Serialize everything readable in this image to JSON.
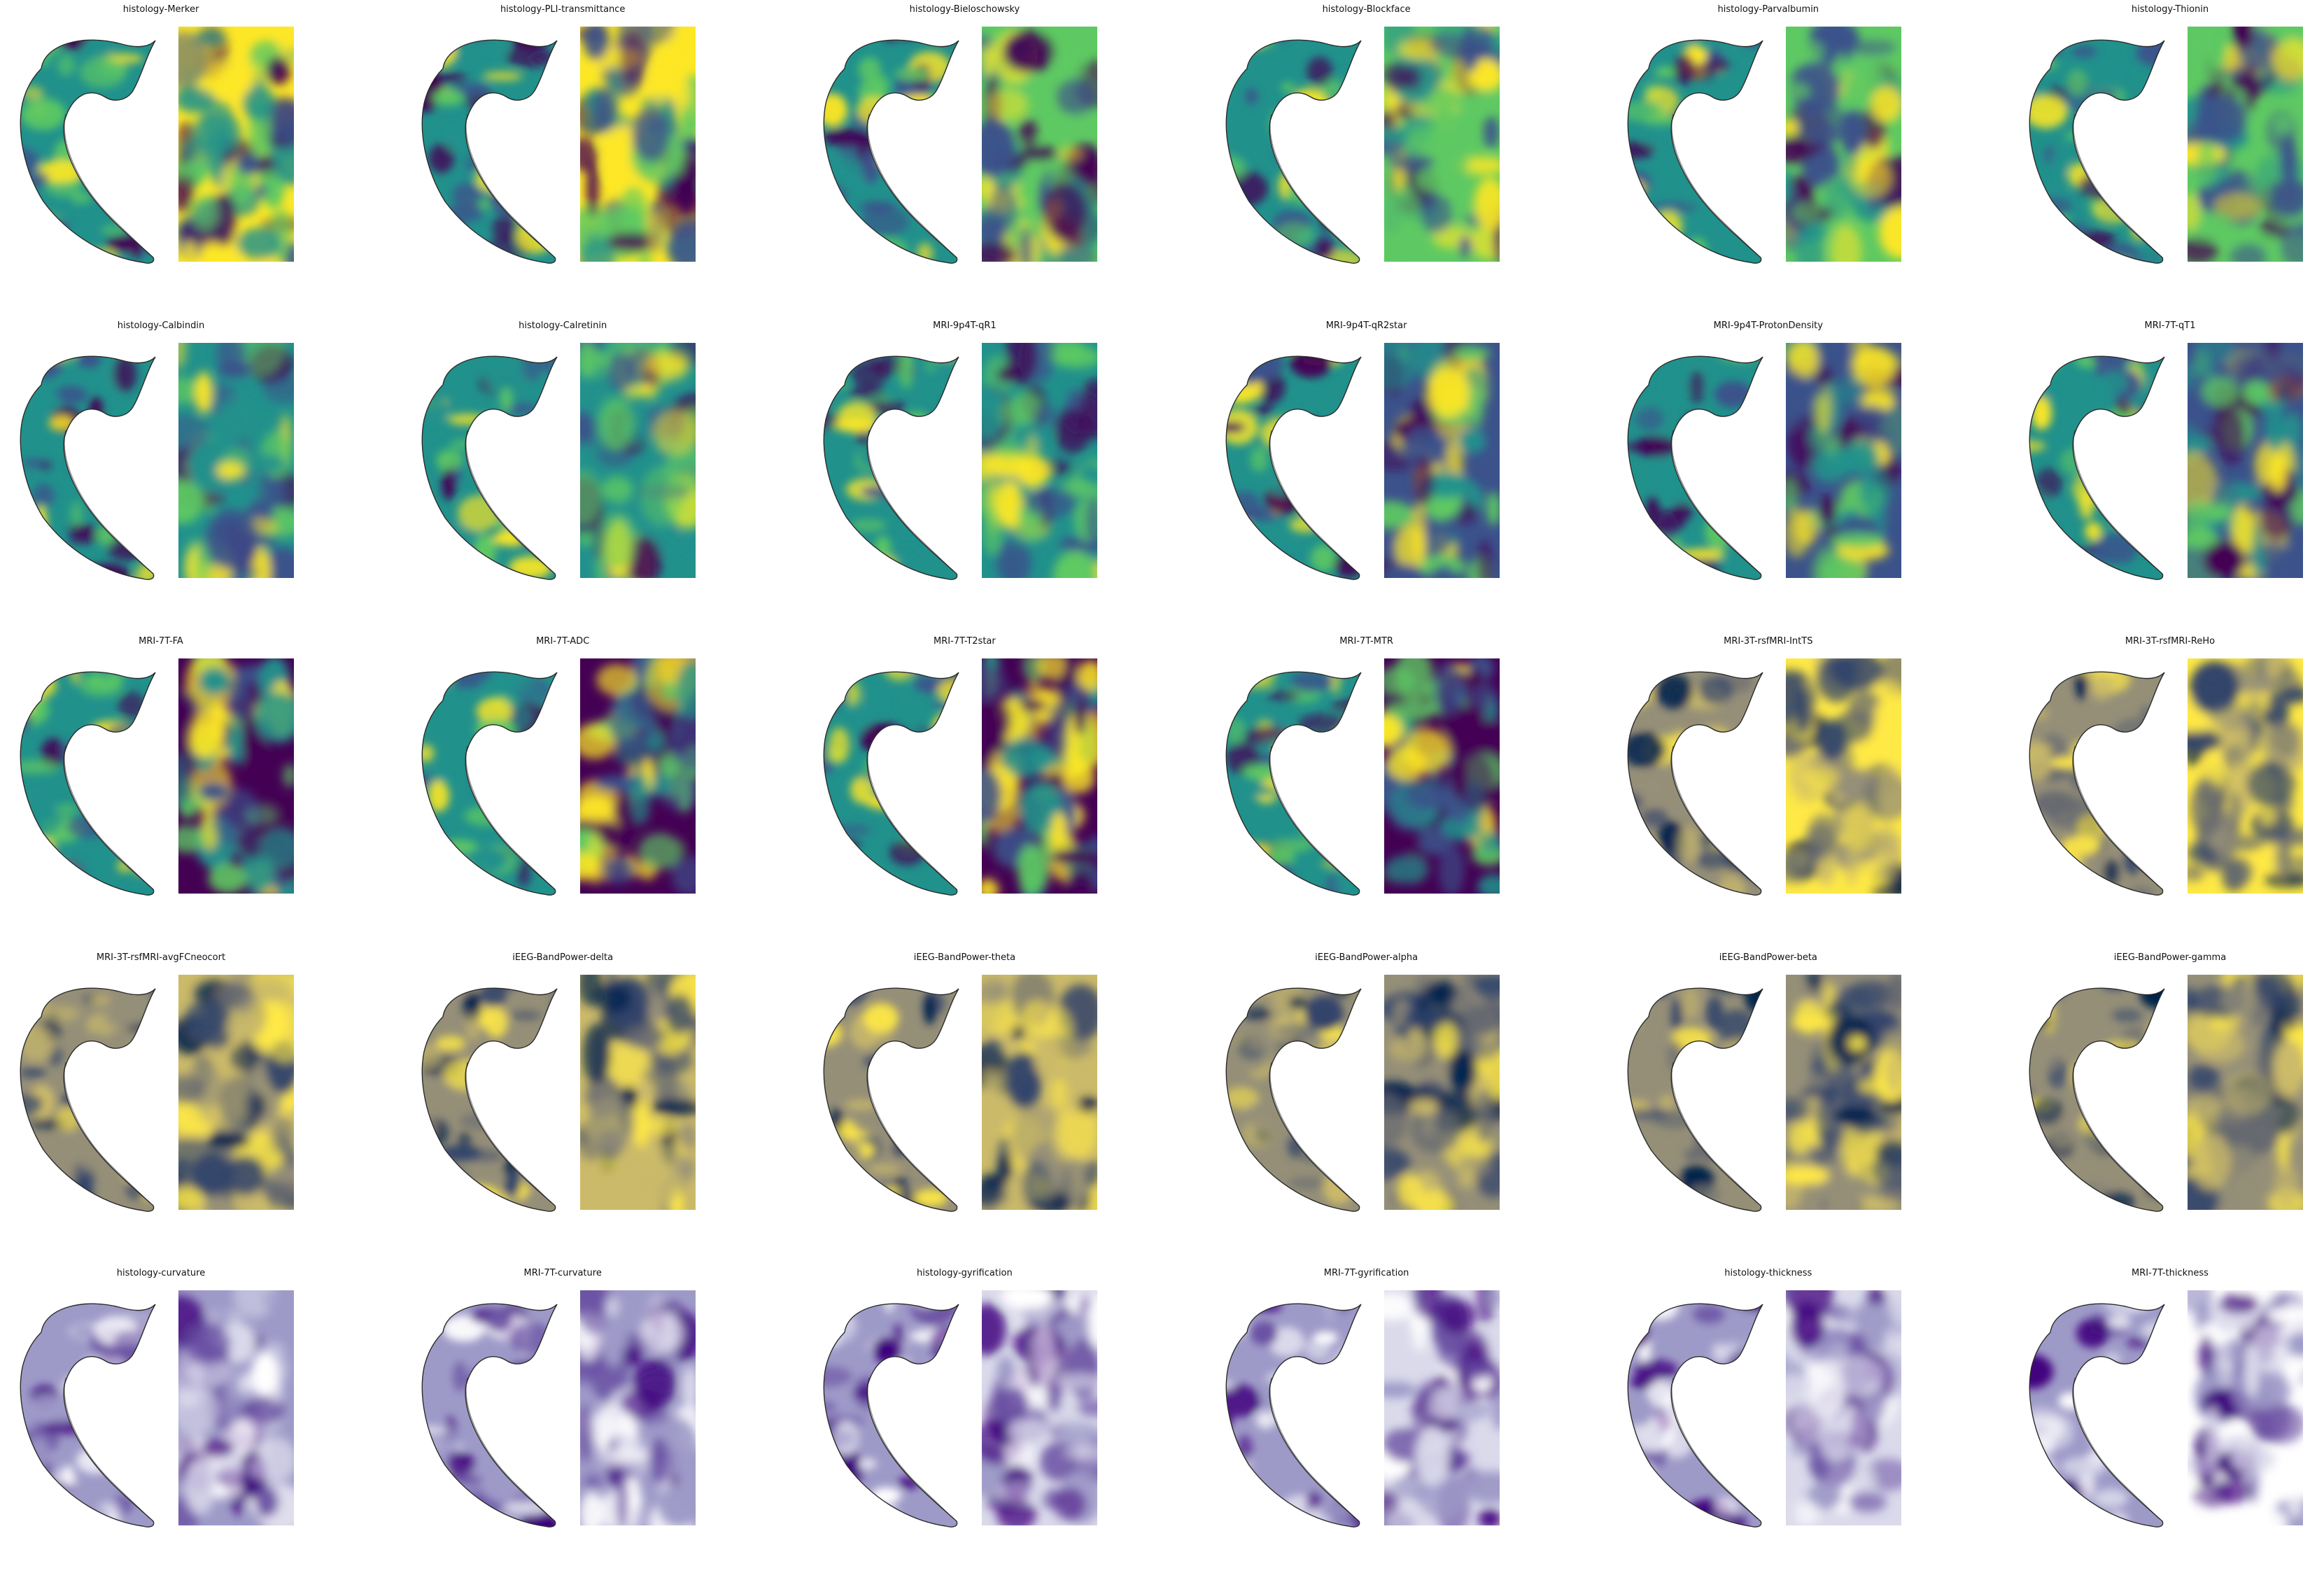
{
  "figure": {
    "colormaps": {
      "viridis": [
        "#440154",
        "#3b528b",
        "#21918c",
        "#5ec962",
        "#fde725"
      ],
      "cividis": [
        "#00204c",
        "#31446b",
        "#666970",
        "#958f78",
        "#cbba69",
        "#ffe945"
      ],
      "purples": [
        "#ffffff",
        "#dadaeb",
        "#9e9ac8",
        "#6a51a3",
        "#3f007d"
      ]
    },
    "panels": [
      {
        "title": "histology-Merker",
        "colormap": "viridis"
      },
      {
        "title": "histology-PLI-transmittance",
        "colormap": "viridis"
      },
      {
        "title": "histology-Bieloschowsky",
        "colormap": "viridis"
      },
      {
        "title": "histology-Blockface",
        "colormap": "viridis"
      },
      {
        "title": "histology-Parvalbumin",
        "colormap": "viridis"
      },
      {
        "title": "histology-Thionin",
        "colormap": "viridis"
      },
      {
        "title": "histology-Calbindin",
        "colormap": "viridis"
      },
      {
        "title": "histology-Calretinin",
        "colormap": "viridis"
      },
      {
        "title": "MRI-9p4T-qR1",
        "colormap": "viridis"
      },
      {
        "title": "MRI-9p4T-qR2star",
        "colormap": "viridis"
      },
      {
        "title": "MRI-9p4T-ProtonDensity",
        "colormap": "viridis"
      },
      {
        "title": "MRI-7T-qT1",
        "colormap": "viridis"
      },
      {
        "title": "MRI-7T-FA",
        "colormap": "viridis"
      },
      {
        "title": "MRI-7T-ADC",
        "colormap": "viridis"
      },
      {
        "title": "MRI-7T-T2star",
        "colormap": "viridis"
      },
      {
        "title": "MRI-7T-MTR",
        "colormap": "viridis"
      },
      {
        "title": "MRI-3T-rsfMRI-IntTS",
        "colormap": "cividis"
      },
      {
        "title": "MRI-3T-rsfMRI-ReHo",
        "colormap": "cividis"
      },
      {
        "title": "MRI-3T-rsfMRI-avgFCneocort",
        "colormap": "cividis"
      },
      {
        "title": "iEEG-BandPower-delta",
        "colormap": "cividis"
      },
      {
        "title": "iEEG-BandPower-theta",
        "colormap": "cividis"
      },
      {
        "title": "iEEG-BandPower-alpha",
        "colormap": "cividis"
      },
      {
        "title": "iEEG-BandPower-beta",
        "colormap": "cividis"
      },
      {
        "title": "iEEG-BandPower-gamma",
        "colormap": "cividis"
      },
      {
        "title": "histology-curvature",
        "colormap": "purples"
      },
      {
        "title": "MRI-7T-curvature",
        "colormap": "purples"
      },
      {
        "title": "histology-gyrification",
        "colormap": "purples"
      },
      {
        "title": "MRI-7T-gyrification",
        "colormap": "purples"
      },
      {
        "title": "histology-thickness",
        "colormap": "purples"
      },
      {
        "title": "MRI-7T-thickness",
        "colormap": "purples"
      }
    ]
  }
}
